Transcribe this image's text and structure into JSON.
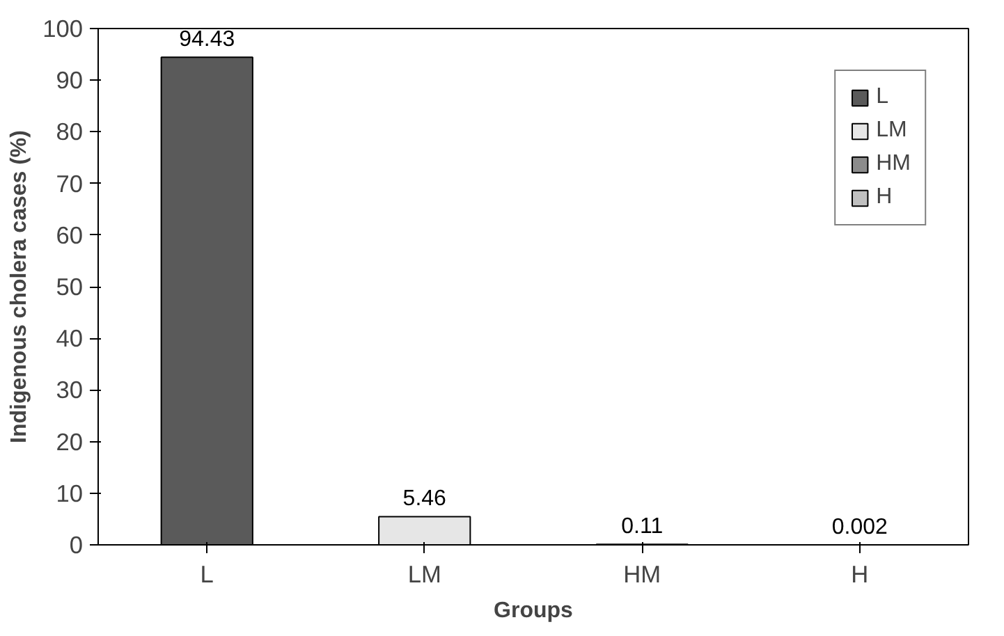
{
  "chart_data": {
    "type": "bar",
    "xlabel": "Groups",
    "ylabel": "Indigenous cholera cases (%)",
    "categories": [
      "L",
      "LM",
      "HM",
      "H"
    ],
    "series": [
      {
        "name": "L",
        "color": "#5a5a5a",
        "values": [
          94.43,
          null,
          null,
          null
        ]
      },
      {
        "name": "LM",
        "color": "#e6e6e6",
        "values": [
          null,
          5.46,
          null,
          null
        ]
      },
      {
        "name": "HM",
        "color": "#8c8c8c",
        "values": [
          null,
          null,
          0.11,
          null
        ]
      },
      {
        "name": "H",
        "color": "#c0c0c0",
        "values": [
          null,
          null,
          null,
          0.002
        ]
      }
    ],
    "ylim": [
      0,
      100
    ],
    "yticks": [
      0,
      10,
      20,
      30,
      40,
      50,
      60,
      70,
      80,
      90,
      100
    ],
    "data_labels": true,
    "legend": "top right",
    "grid": false
  }
}
